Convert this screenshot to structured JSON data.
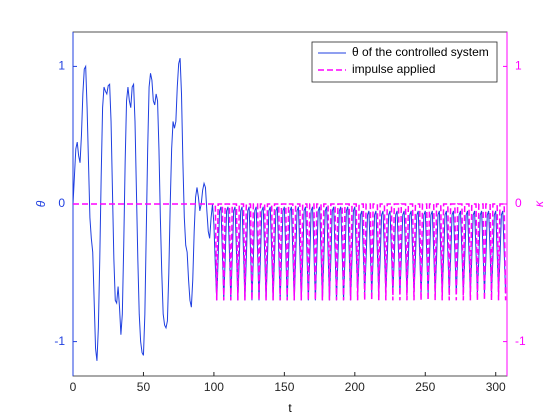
{
  "chart_data": {
    "type": "line",
    "xlabel": "t",
    "ylabel": "θ",
    "y2label": "κ",
    "x": [
      0,
      1,
      2,
      3,
      4,
      5,
      6,
      7,
      8,
      9,
      10,
      11,
      12,
      13,
      14,
      15,
      16,
      17,
      18,
      19,
      20,
      21,
      22,
      23,
      24,
      25,
      26,
      27,
      28,
      29,
      30,
      31,
      32,
      33,
      34,
      35,
      36,
      37,
      38,
      39,
      40,
      41,
      42,
      43,
      44,
      45,
      46,
      47,
      48,
      49,
      50,
      51,
      52,
      53,
      54,
      55,
      56,
      57,
      58,
      59,
      60,
      61,
      62,
      63,
      64,
      65,
      66,
      67,
      68,
      69,
      70,
      71,
      72,
      73,
      74,
      75,
      76,
      77,
      78,
      79,
      80,
      81,
      82,
      83,
      84,
      85,
      86,
      87,
      88,
      89,
      90,
      91,
      92,
      93,
      94,
      95,
      96,
      97,
      98,
      99,
      100,
      101,
      102,
      103,
      104,
      105,
      106,
      107,
      108,
      109,
      110,
      111,
      112,
      113,
      114,
      115,
      116,
      117,
      118,
      119,
      120,
      121,
      122,
      123,
      124,
      125,
      126,
      127,
      128,
      129,
      130,
      131,
      132,
      133,
      134,
      135,
      136,
      137,
      138,
      139,
      140,
      141,
      142,
      143,
      144,
      145,
      146,
      147,
      148,
      149,
      150,
      151,
      152,
      153,
      154,
      155,
      156,
      157,
      158,
      159,
      160,
      161,
      162,
      163,
      164,
      165,
      166,
      167,
      168,
      169,
      170,
      171,
      172,
      173,
      174,
      175,
      176,
      177,
      178,
      179,
      180,
      181,
      182,
      183,
      184,
      185,
      186,
      187,
      188,
      189,
      190,
      191,
      192,
      193,
      194,
      195,
      196,
      197,
      198,
      199,
      200,
      201,
      202,
      203,
      204,
      205,
      206,
      207,
      208,
      209,
      210,
      211,
      212,
      213,
      214,
      215,
      216,
      217,
      218,
      219,
      220,
      221,
      222,
      223,
      224,
      225,
      226,
      227,
      228,
      229,
      230,
      231,
      232,
      233,
      234,
      235,
      236,
      237,
      238,
      239,
      240,
      241,
      242,
      243,
      244,
      245,
      246,
      247,
      248,
      249,
      250,
      251,
      252,
      253,
      254,
      255,
      256,
      257,
      258,
      259,
      260,
      261,
      262,
      263,
      264,
      265,
      266,
      267,
      268,
      269,
      270,
      271,
      272,
      273,
      274,
      275,
      276,
      277,
      278,
      279,
      280,
      281,
      282,
      283,
      284,
      285,
      286,
      287,
      288,
      289,
      290,
      291,
      292,
      293,
      294,
      295,
      296,
      297,
      298,
      299,
      300,
      301,
      302,
      303,
      304,
      305,
      306,
      307
    ],
    "series": [
      {
        "name": "θ of the controlled system",
        "color": "#1f3fe0",
        "axis": "y",
        "dash": false,
        "values": [
          0,
          0.2,
          0.4,
          0.45,
          0.35,
          0.3,
          0.5,
          0.8,
          0.98,
          1.0,
          0.7,
          0.3,
          -0.1,
          -0.25,
          -0.35,
          -0.7,
          -1.05,
          -1.14,
          -0.9,
          -0.4,
          0.2,
          0.7,
          0.85,
          0.82,
          0.8,
          0.86,
          0.87,
          0.6,
          0.1,
          -0.4,
          -0.7,
          -0.72,
          -0.6,
          -0.75,
          -0.95,
          -0.8,
          -0.3,
          0.3,
          0.75,
          0.85,
          0.75,
          0.7,
          0.85,
          0.87,
          0.6,
          0.1,
          -0.4,
          -0.8,
          -1.0,
          -1.08,
          -1.1,
          -0.8,
          -0.2,
          0.4,
          0.85,
          0.95,
          0.9,
          0.75,
          0.72,
          0.8,
          0.75,
          0.4,
          -0.1,
          -0.5,
          -0.8,
          -0.88,
          -0.9,
          -0.85,
          -0.5,
          0.0,
          0.4,
          0.6,
          0.55,
          0.6,
          0.85,
          1.02,
          1.06,
          0.8,
          0.3,
          -0.1,
          -0.3,
          -0.35,
          -0.55,
          -0.7,
          -0.75,
          -0.55,
          -0.2,
          0.05,
          0.12,
          0.05,
          -0.05,
          0.0,
          0.1,
          0.15,
          0.12,
          -0.05,
          -0.2,
          -0.25,
          -0.1,
          0.0,
          -0.15,
          -0.45,
          -0.7,
          -0.4,
          -0.05,
          -0.02,
          -0.35,
          -0.7,
          -0.4,
          -0.05,
          -0.02,
          -0.35,
          -0.7,
          -0.4,
          -0.05,
          -0.02,
          -0.35,
          -0.7,
          -0.4,
          -0.05,
          -0.02,
          -0.35,
          -0.7,
          -0.4,
          -0.05,
          -0.02,
          -0.35,
          -0.7,
          -0.4,
          -0.05,
          -0.02,
          -0.35,
          -0.7,
          -0.4,
          -0.05,
          -0.02,
          -0.35,
          -0.7,
          -0.4,
          -0.05,
          -0.02,
          -0.35,
          -0.7,
          -0.4,
          -0.05,
          -0.02,
          -0.35,
          -0.7,
          -0.4,
          -0.05,
          -0.02,
          -0.35,
          -0.7,
          -0.4,
          -0.05,
          -0.02,
          -0.35,
          -0.7,
          -0.4,
          -0.05,
          -0.02,
          -0.35,
          -0.7,
          -0.4,
          -0.05,
          -0.02,
          -0.35,
          -0.7,
          -0.4,
          -0.05,
          -0.02,
          -0.35,
          -0.7,
          -0.4,
          -0.05,
          -0.02,
          -0.35,
          -0.7,
          -0.4,
          -0.05,
          -0.02,
          -0.35,
          -0.7,
          -0.4,
          -0.05,
          -0.02,
          -0.35,
          -0.7,
          -0.4,
          -0.05,
          -0.02,
          -0.35,
          -0.7,
          -0.4,
          -0.05,
          -0.02,
          -0.35,
          -0.7,
          -0.4,
          -0.05,
          -0.02,
          -0.35,
          -0.65,
          -0.4,
          -0.08,
          -0.05,
          -0.35,
          -0.65,
          -0.4,
          -0.08,
          -0.05,
          -0.35,
          -0.65,
          -0.4,
          -0.08,
          -0.05,
          -0.35,
          -0.65,
          -0.4,
          -0.08,
          -0.05,
          -0.35,
          -0.65,
          -0.4,
          -0.08,
          -0.05,
          -0.35,
          -0.65,
          -0.4,
          -0.08,
          -0.05,
          -0.35,
          -0.65,
          -0.4,
          -0.08,
          -0.05,
          -0.35,
          -0.65,
          -0.4,
          -0.08,
          -0.05,
          -0.35,
          -0.65,
          -0.4,
          -0.08,
          -0.05,
          -0.35,
          -0.65,
          -0.4,
          -0.08,
          -0.05,
          -0.35,
          -0.65,
          -0.4,
          -0.08,
          -0.05,
          -0.35,
          -0.65,
          -0.4,
          -0.08,
          -0.05,
          -0.35,
          -0.65,
          -0.4,
          -0.08,
          -0.05,
          -0.35,
          -0.65,
          -0.4,
          -0.08,
          -0.05,
          -0.35,
          -0.65,
          -0.4,
          -0.08,
          -0.05,
          -0.35,
          -0.65,
          -0.4,
          -0.08,
          -0.05,
          -0.35,
          -0.65,
          -0.4,
          -0.08,
          -0.05,
          -0.35,
          -0.65,
          -0.4,
          -0.08,
          -0.05,
          -0.35,
          -0.65,
          -0.4,
          -0.08,
          -0.05,
          -0.35,
          -0.65,
          -0.4,
          -0.08,
          -0.05,
          -0.35,
          -0.65,
          -0.4,
          -0.08,
          -0.05,
          -0.35,
          -0.65
        ]
      },
      {
        "name": "impulse applied",
        "color": "#ff00ff",
        "axis": "y2",
        "dash": true,
        "values": [
          0,
          0,
          0,
          0,
          0,
          0,
          0,
          0,
          0,
          0,
          0,
          0,
          0,
          0,
          0,
          0,
          0,
          0,
          0,
          0,
          0,
          0,
          0,
          0,
          0,
          0,
          0,
          0,
          0,
          0,
          0,
          0,
          0,
          0,
          0,
          0,
          0,
          0,
          0,
          0,
          0,
          0,
          0,
          0,
          0,
          0,
          0,
          0,
          0,
          0,
          0,
          0,
          0,
          0,
          0,
          0,
          0,
          0,
          0,
          0,
          0,
          0,
          0,
          0,
          0,
          0,
          0,
          0,
          0,
          0,
          0,
          0,
          0,
          0,
          0,
          0,
          0,
          0,
          0,
          0,
          0,
          0,
          0,
          0,
          0,
          0,
          0,
          0,
          0,
          0,
          0,
          0,
          0,
          0,
          0,
          0,
          0,
          0,
          0,
          0,
          0,
          0,
          -0.7,
          0,
          0,
          0,
          0,
          -0.7,
          0,
          0,
          0,
          0,
          -0.7,
          0,
          0,
          0,
          0,
          -0.7,
          0,
          0,
          0,
          0,
          -0.7,
          0,
          0,
          0,
          0,
          -0.7,
          0,
          0,
          0,
          0,
          -0.7,
          0,
          0,
          0,
          0,
          -0.7,
          0,
          0,
          0,
          0,
          -0.7,
          0,
          0,
          0,
          0,
          -0.7,
          0,
          0,
          0,
          0,
          -0.7,
          0,
          0,
          0,
          0,
          -0.7,
          0,
          0,
          0,
          0,
          -0.7,
          0,
          0,
          0,
          0,
          -0.7,
          0,
          0,
          0,
          0,
          -0.7,
          0,
          0,
          0,
          0,
          -0.7,
          0,
          0,
          0,
          0,
          -0.7,
          0,
          0,
          0,
          0,
          -0.7,
          0,
          0,
          0,
          0,
          -0.7,
          0,
          0,
          0,
          0,
          -0.7,
          0,
          0,
          0,
          0,
          -0.7,
          0,
          0,
          0,
          0,
          -0.7,
          0,
          0,
          0,
          0,
          -0.7,
          0,
          0,
          0,
          0,
          -0.7,
          0,
          0,
          0,
          0,
          -0.7,
          0,
          0,
          0,
          0,
          -0.7,
          0,
          0,
          0,
          0,
          -0.7,
          0,
          0,
          0,
          0,
          -0.7,
          0,
          0,
          0,
          0,
          -0.7,
          0,
          0,
          0,
          0,
          -0.7,
          0,
          0,
          0,
          0,
          -0.7,
          0,
          0,
          0,
          0,
          -0.7,
          0,
          0,
          0,
          0,
          -0.7,
          0,
          0,
          0,
          0,
          -0.7,
          0,
          0,
          0,
          0,
          -0.7,
          0,
          0,
          0,
          0,
          -0.7,
          0,
          0,
          0,
          0,
          -0.7,
          0,
          0,
          0,
          0,
          -0.7,
          0,
          0,
          0,
          0,
          -0.7,
          0,
          0,
          0,
          0,
          -0.7,
          0,
          0,
          0,
          0,
          -0.7,
          0,
          0,
          0,
          0,
          -0.7
        ]
      }
    ],
    "xlim": [
      0,
      308
    ],
    "xticks": [
      0,
      50,
      100,
      150,
      200,
      250,
      300
    ],
    "ylim": [
      -1.25,
      1.25
    ],
    "yticks": [
      -1,
      0,
      1
    ],
    "y2lim": [
      -1.25,
      1.25
    ],
    "y2ticks": [
      -1,
      0,
      1
    ],
    "y_color": "#1f3fe0",
    "y2_color": "#ff00ff",
    "legend": "northeast"
  }
}
